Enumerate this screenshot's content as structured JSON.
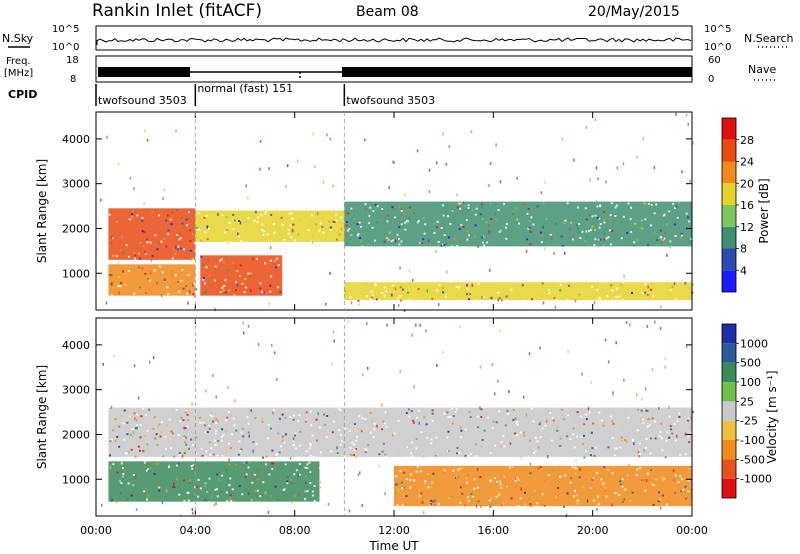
{
  "header": {
    "station": "Rankin Inlet (fitACF)",
    "beam": "Beam 08",
    "date": "20/May/2015"
  },
  "top_panels": {
    "nsky_label": "N.Sky",
    "nsearch_label": "N.Search",
    "freq_label_1": "Freq.",
    "freq_label_2": "[MHz]",
    "nave_label": "Nave",
    "cpid_label": "CPID",
    "count_ticks_left": [
      "10^5",
      "10^0"
    ],
    "count_ticks_right": [
      "10^5",
      "10^0"
    ],
    "freq_ticks": [
      "18",
      "8"
    ],
    "nave_ticks": [
      "60",
      "0"
    ],
    "cpid_segments": [
      {
        "start_hour": 0.0,
        "end_hour": 4.0,
        "label": "twofsound 3503"
      },
      {
        "start_hour": 4.0,
        "end_hour": 10.0,
        "label": "normal (fast) 151"
      },
      {
        "start_hour": 10.0,
        "end_hour": 24.0,
        "label": "twofsound 3503"
      }
    ]
  },
  "chart_data": [
    {
      "type": "heatmap",
      "name": "power-panel",
      "xlabel": "",
      "ylabel": "Slant Range [km]",
      "xlim": [
        0,
        24
      ],
      "ylim": [
        180,
        4600
      ],
      "y_ticks": [
        1000,
        2000,
        3000,
        4000
      ],
      "colorbar": {
        "label": "Power [dB]",
        "tick_labels": [
          "4",
          "8",
          "12",
          "16",
          "20",
          "24",
          "28"
        ],
        "colors": [
          "#1a1aff",
          "#2a4ab0",
          "#3f8f70",
          "#7bc85c",
          "#e5d32b",
          "#f08a1a",
          "#e84a14",
          "#e01010"
        ]
      },
      "regions": [
        {
          "x": [
            0.5,
            4.0
          ],
          "y": [
            1300,
            2450
          ],
          "level": 28
        },
        {
          "x": [
            0.5,
            4.0
          ],
          "y": [
            500,
            1200
          ],
          "level": 22
        },
        {
          "x": [
            4.2,
            7.5
          ],
          "y": [
            500,
            1400
          ],
          "level": 26
        },
        {
          "x": [
            4.0,
            10.0
          ],
          "y": [
            1700,
            2400
          ],
          "level": 18
        },
        {
          "x": [
            10.0,
            24.0
          ],
          "y": [
            1600,
            2600
          ],
          "level": 12
        },
        {
          "x": [
            10.0,
            24.0
          ],
          "y": [
            400,
            800
          ],
          "level": 20
        }
      ]
    },
    {
      "type": "heatmap",
      "name": "velocity-panel",
      "xlabel": "Time UT",
      "ylabel": "Slant Range [km]",
      "xlim": [
        0,
        24
      ],
      "ylim": [
        180,
        4600
      ],
      "y_ticks": [
        1000,
        2000,
        3000,
        4000
      ],
      "x_tick_labels": [
        "00:00",
        "04:00",
        "08:00",
        "12:00",
        "16:00",
        "20:00",
        "00:00"
      ],
      "colorbar": {
        "label": "Velocity [m s⁻¹]",
        "tick_labels": [
          "1000",
          "500",
          "100",
          "25",
          "-25",
          "-100",
          "-500",
          "-1000"
        ],
        "colors": [
          "#1c2ea8",
          "#2b5a98",
          "#3a8a5a",
          "#6ec24a",
          "#c8c8c8",
          "#f0c040",
          "#f08a1a",
          "#e85020",
          "#e01010"
        ]
      },
      "regions": [
        {
          "x": [
            0.5,
            24.0
          ],
          "y": [
            1500,
            2600
          ],
          "level": 0
        },
        {
          "x": [
            0.5,
            9.0
          ],
          "y": [
            500,
            1400
          ],
          "level": 200
        },
        {
          "x": [
            12.0,
            24.0
          ],
          "y": [
            400,
            1300
          ],
          "level": -300
        }
      ]
    }
  ]
}
